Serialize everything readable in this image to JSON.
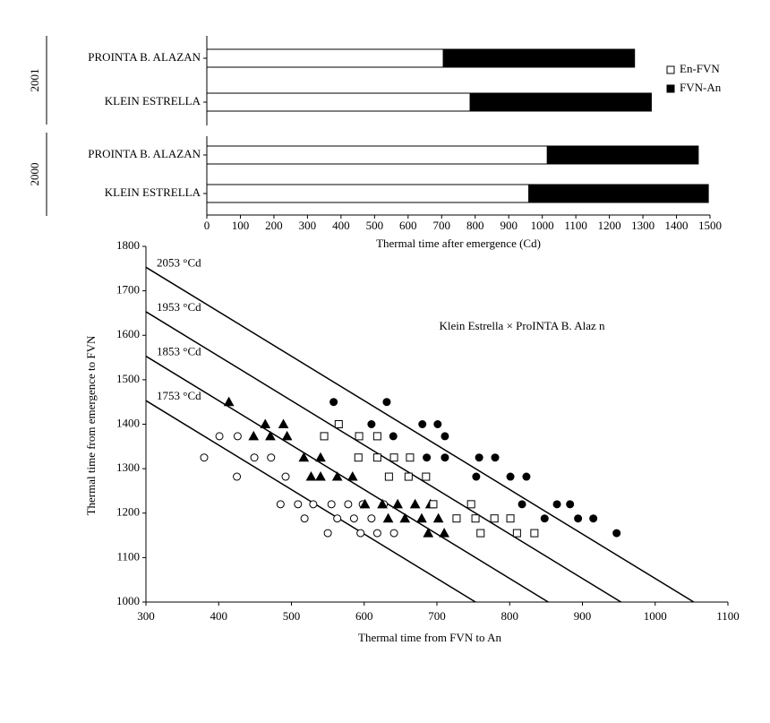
{
  "chart_data": [
    {
      "type": "bar",
      "orientation": "horizontal",
      "stacked": true,
      "categories": [
        "PROINTA B. ALAZAN",
        "KLEIN ESTRELLA",
        "PROINTA B. ALAZAN",
        "KLEIN ESTRELLA"
      ],
      "category_groups": [
        "2001",
        "2001",
        "2000",
        "2000"
      ],
      "series": [
        {
          "name": "En-FVN",
          "color": "#ffffff",
          "values": [
            705,
            785,
            1015,
            960
          ]
        },
        {
          "name": "FVN-An",
          "color": "#000000",
          "values": [
            570,
            540,
            450,
            535
          ]
        }
      ],
      "xlabel": "Thermal time after emergence (Cd)",
      "xlim": [
        0,
        1500
      ],
      "xticks": [
        0,
        100,
        200,
        300,
        400,
        500,
        600,
        700,
        800,
        900,
        1000,
        1100,
        1200,
        1300,
        1400,
        1500
      ],
      "legend": "right"
    },
    {
      "type": "scatter",
      "xlabel": "Thermal time from FVN to An",
      "ylabel": "Thermal time from emergence to FVN",
      "annotation": "Klein Estrella × ProINTA B. Alaz n",
      "xlim": [
        300,
        1100
      ],
      "xticks": [
        300,
        400,
        500,
        600,
        700,
        800,
        900,
        1000,
        1100
      ],
      "ylim": [
        1000,
        1800
      ],
      "yticks": [
        1000,
        1100,
        1200,
        1300,
        1400,
        1500,
        1600,
        1700,
        1800
      ],
      "isolines": [
        {
          "label": "2053 °Cd",
          "total": 2053
        },
        {
          "label": "1953 °Cd",
          "total": 1953
        },
        {
          "label": "1853 °Cd",
          "total": 1853
        },
        {
          "label": "1753 °Cd",
          "total": 1753
        }
      ],
      "series": [
        {
          "marker": "circle",
          "color": "#ffffff",
          "x": [
            380,
            401,
            426,
            425,
            449,
            472,
            485,
            492,
            509,
            518,
            530,
            550,
            555,
            563,
            578,
            586,
            595,
            598,
            610,
            618,
            627,
            641
          ],
          "values": [
            1325,
            1373,
            1373,
            1282,
            1325,
            1325,
            1220,
            1282,
            1220,
            1188,
            1220,
            1155,
            1220,
            1188,
            1220,
            1188,
            1155,
            1220,
            1188,
            1155,
            1220,
            1155
          ]
        },
        {
          "marker": "triangle",
          "color": "#000000",
          "x": [
            414,
            464,
            489,
            448,
            471,
            494,
            517,
            540,
            527,
            540,
            563,
            584,
            601,
            625,
            646,
            670,
            691,
            633,
            656,
            679,
            702,
            688,
            710
          ],
          "values": [
            1450,
            1400,
            1400,
            1373,
            1373,
            1373,
            1325,
            1325,
            1282,
            1282,
            1282,
            1282,
            1220,
            1220,
            1220,
            1220,
            1220,
            1188,
            1188,
            1188,
            1188,
            1155,
            1155
          ]
        },
        {
          "marker": "square",
          "color": "#ffffff",
          "x": [
            565,
            545,
            593,
            618,
            592,
            618,
            641,
            663,
            634,
            661,
            685,
            695,
            747,
            727,
            753,
            779,
            801,
            760,
            810,
            834
          ],
          "values": [
            1400,
            1373,
            1373,
            1373,
            1325,
            1325,
            1325,
            1325,
            1282,
            1282,
            1282,
            1220,
            1220,
            1188,
            1188,
            1188,
            1188,
            1155,
            1155,
            1155
          ]
        },
        {
          "marker": "circle",
          "color": "#000000",
          "x": [
            558,
            631,
            610,
            680,
            701,
            640,
            711,
            686,
            711,
            758,
            780,
            754,
            801,
            823,
            817,
            865,
            883,
            848,
            894,
            915,
            947
          ],
          "values": [
            1450,
            1450,
            1400,
            1400,
            1400,
            1373,
            1373,
            1325,
            1325,
            1325,
            1325,
            1282,
            1282,
            1282,
            1220,
            1220,
            1220,
            1188,
            1188,
            1188,
            1155
          ]
        }
      ]
    }
  ]
}
